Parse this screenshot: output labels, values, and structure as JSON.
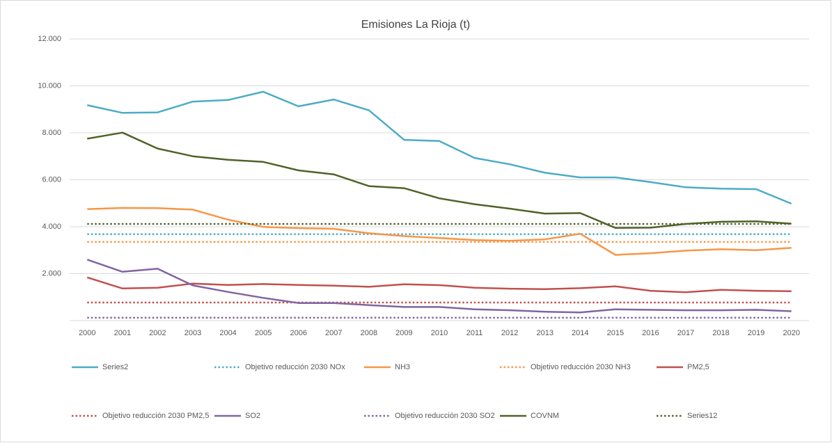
{
  "chart_data": {
    "type": "line",
    "title": "Emisiones La Rioja (t)",
    "categories": [
      "2000",
      "2001",
      "2002",
      "2003",
      "2004",
      "2005",
      "2006",
      "2007",
      "2008",
      "2009",
      "2010",
      "2011",
      "2012",
      "2013",
      "2014",
      "2015",
      "2016",
      "2017",
      "2018",
      "2019",
      "2020"
    ],
    "ylim": [
      0,
      12000
    ],
    "yticks": [
      {
        "value": 2000,
        "label": "2.000"
      },
      {
        "value": 4000,
        "label": "4.000"
      },
      {
        "value": 6000,
        "label": "6.000"
      },
      {
        "value": 8000,
        "label": "8.000"
      },
      {
        "value": 10000,
        "label": "10.000"
      },
      {
        "value": 12000,
        "label": "12.000"
      }
    ],
    "grid": true,
    "legend": "bottom",
    "series": [
      {
        "name": "Series2",
        "color": "#4bacc6",
        "dash": "solid",
        "values": [
          9180,
          8850,
          8870,
          9330,
          9400,
          9750,
          9130,
          9420,
          8960,
          7700,
          7650,
          6930,
          6660,
          6300,
          6100,
          6100,
          5900,
          5680,
          5620,
          5600,
          4980
        ]
      },
      {
        "name": "Objetivo reducción 2030 NOx",
        "color": "#4bacc6",
        "dash": "dotted",
        "values": [
          3680,
          3680,
          3680,
          3680,
          3680,
          3680,
          3680,
          3680,
          3680,
          3680,
          3680,
          3680,
          3680,
          3680,
          3680,
          3680,
          3680,
          3680,
          3680,
          3680,
          3680
        ]
      },
      {
        "name": "NH3",
        "color": "#f79646",
        "dash": "solid",
        "values": [
          4750,
          4800,
          4790,
          4730,
          4300,
          3990,
          3940,
          3910,
          3720,
          3600,
          3520,
          3430,
          3400,
          3460,
          3700,
          2800,
          2870,
          2980,
          3040,
          3000,
          3100
        ]
      },
      {
        "name": "Objetivo reducción 2030 NH3",
        "color": "#f79646",
        "dash": "dotted",
        "values": [
          3350,
          3350,
          3350,
          3350,
          3350,
          3350,
          3350,
          3350,
          3350,
          3350,
          3350,
          3350,
          3350,
          3350,
          3350,
          3350,
          3350,
          3350,
          3350,
          3350,
          3350
        ]
      },
      {
        "name": "PM2,5",
        "color": "#c0504d",
        "dash": "solid",
        "values": [
          1840,
          1370,
          1400,
          1580,
          1520,
          1560,
          1520,
          1490,
          1440,
          1550,
          1510,
          1400,
          1360,
          1340,
          1380,
          1460,
          1270,
          1210,
          1310,
          1270,
          1250
        ]
      },
      {
        "name": "Objetivo reducción 2030 PM2,5",
        "color": "#c0504d",
        "dash": "dotted",
        "values": [
          770,
          770,
          770,
          770,
          770,
          770,
          770,
          770,
          770,
          770,
          770,
          770,
          770,
          770,
          770,
          770,
          770,
          770,
          770,
          770,
          770
        ]
      },
      {
        "name": "SO2",
        "color": "#8064a2",
        "dash": "solid",
        "values": [
          2600,
          2080,
          2210,
          1500,
          1220,
          970,
          750,
          750,
          660,
          580,
          580,
          480,
          440,
          380,
          350,
          480,
          460,
          440,
          440,
          460,
          400
        ]
      },
      {
        "name": "Objetivo reducción 2030 SO2",
        "color": "#8064a2",
        "dash": "dotted",
        "values": [
          120,
          120,
          120,
          120,
          120,
          120,
          120,
          120,
          120,
          120,
          120,
          120,
          120,
          120,
          120,
          120,
          120,
          120,
          120,
          120,
          120
        ]
      },
      {
        "name": "COVNM",
        "color": "#4f6228",
        "dash": "solid",
        "values": [
          7750,
          8010,
          7330,
          7000,
          6850,
          6760,
          6400,
          6230,
          5730,
          5640,
          5210,
          4960,
          4770,
          4560,
          4580,
          3950,
          3960,
          4120,
          4210,
          4230,
          4130
        ]
      },
      {
        "name": "Series12",
        "color": "#4f6228",
        "dash": "dotted",
        "values": [
          4120,
          4120,
          4120,
          4120,
          4120,
          4120,
          4120,
          4120,
          4120,
          4120,
          4120,
          4120,
          4120,
          4120,
          4120,
          4120,
          4120,
          4120,
          4120,
          4120,
          4120
        ]
      }
    ]
  }
}
